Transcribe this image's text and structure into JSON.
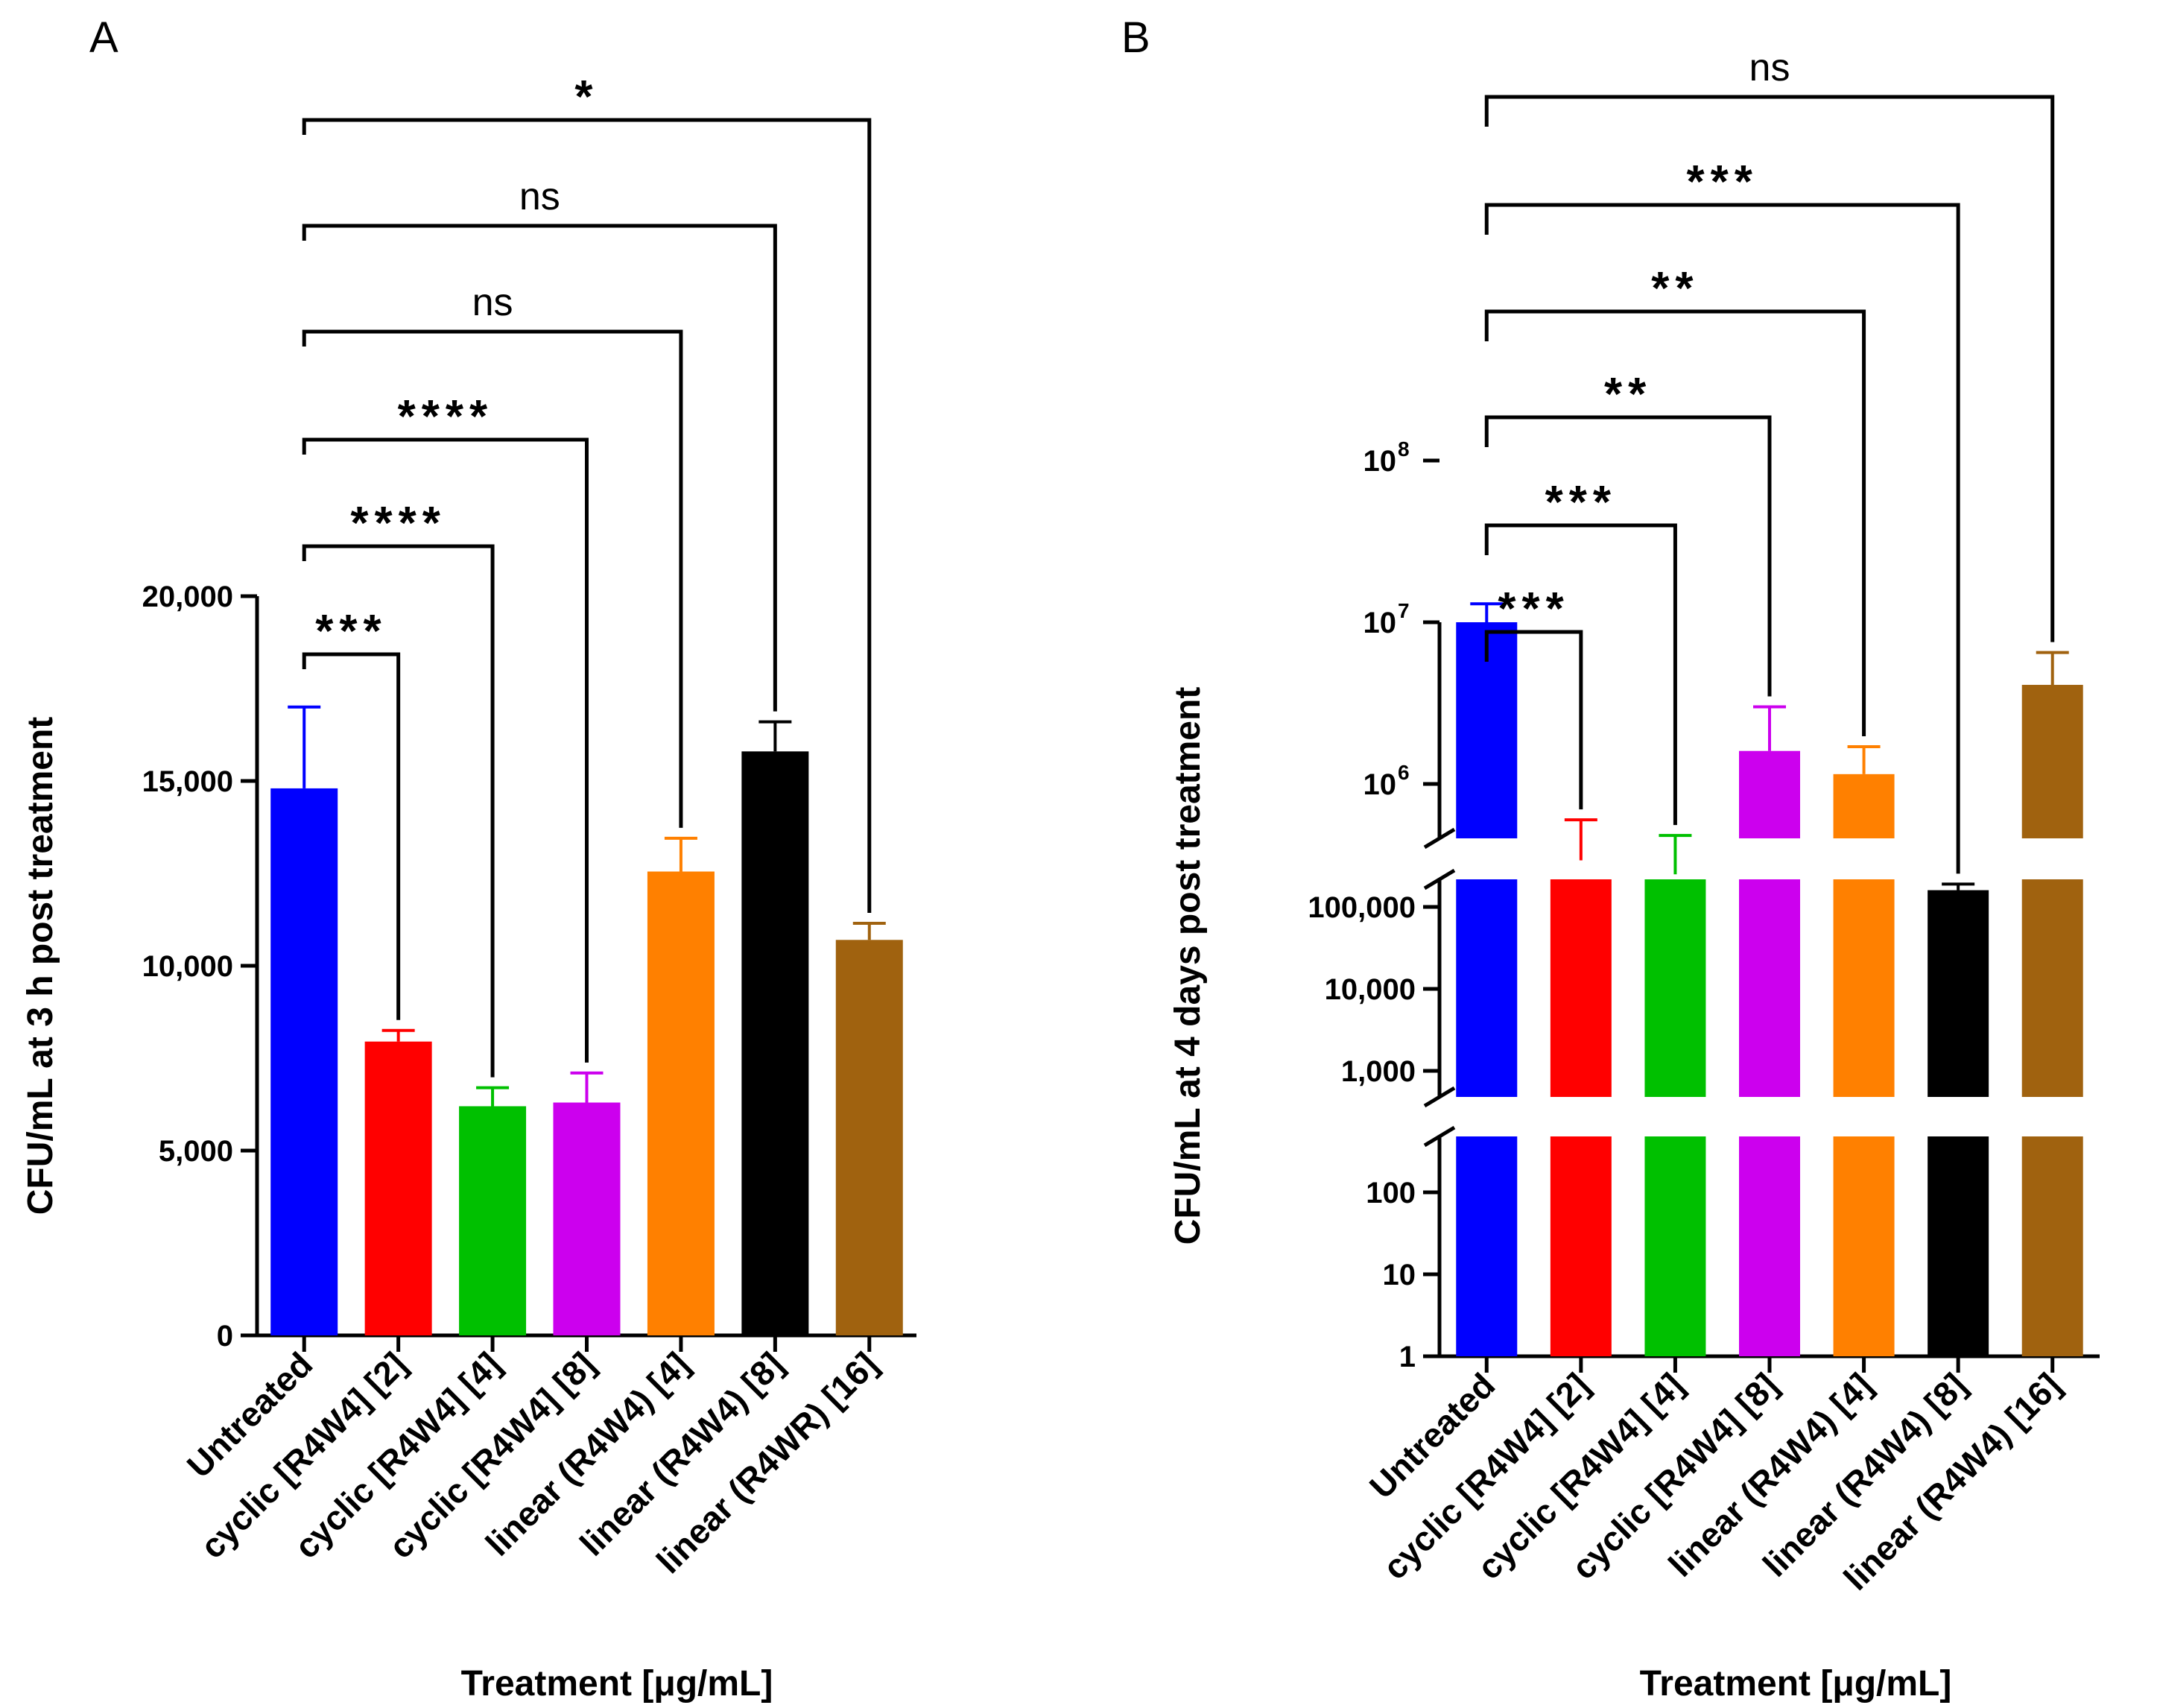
{
  "chart_data": [
    {
      "panel": "A",
      "type": "bar",
      "ylabel": "CFU/mL at 3 h post treatment",
      "xlabel": "Treatment [μg/mL]",
      "ylim": [
        0,
        20000
      ],
      "yticks": [
        0,
        5000,
        10000,
        15000,
        20000
      ],
      "ytick_labels": [
        "0",
        "5,000",
        "10,000",
        "15,000",
        "20,000"
      ],
      "categories": [
        "Untreated",
        "cyclic [R4W4] [2]",
        "cyclic [R4W4] [4]",
        "cyclic [R4W4] [8]",
        "linear (R4W4) [4]",
        "linear (R4W4) [8]",
        "linear (R4WR) [16]"
      ],
      "values": [
        14800,
        7950,
        6200,
        6300,
        12550,
        15800,
        10700
      ],
      "errors": [
        2200,
        300,
        500,
        800,
        900,
        800,
        450
      ],
      "colors": [
        "#0000ff",
        "#ff0000",
        "#00c000",
        "#cc00ee",
        "#ff8000",
        "#000000",
        "#a0620f"
      ],
      "comparisons": [
        {
          "to": 1,
          "label": "***"
        },
        {
          "to": 2,
          "label": "****"
        },
        {
          "to": 3,
          "label": "****"
        },
        {
          "to": 4,
          "label": "ns"
        },
        {
          "to": 5,
          "label": "ns"
        },
        {
          "to": 6,
          "label": "*"
        }
      ]
    },
    {
      "panel": "B",
      "type": "bar",
      "scale": "log-broken",
      "ylabel": "CFU/mL at 4 days post treatment",
      "xlabel": "Treatment [μg/mL]",
      "ylim": [
        1,
        100000000
      ],
      "yticks_lower": [
        "1",
        "10",
        "100"
      ],
      "yticks_middle": [
        "1,000",
        "10,000",
        "100,000"
      ],
      "yticks_upper": [
        "10",
        "10",
        "10"
      ],
      "yticks_upper_exp": [
        "6",
        "7",
        "8"
      ],
      "categories": [
        "Untreated",
        "cyclic [R4W4] [2]",
        "cyclic [R4W4] [4]",
        "cyclic [R4W4] [8]",
        "linear (R4W4) [4]",
        "linear (R4W4) [8]",
        "linear (R4W4) [16]"
      ],
      "values": [
        10000000,
        370000,
        250000,
        1600000,
        1150000,
        160000,
        4100000
      ],
      "error_tops": [
        13000000,
        600000,
        480000,
        3000000,
        1700000,
        190000,
        6500000
      ],
      "colors": [
        "#0000ff",
        "#ff0000",
        "#00c000",
        "#cc00ee",
        "#ff8000",
        "#000000",
        "#a0620f"
      ],
      "comparisons": [
        {
          "to": 1,
          "label": "***"
        },
        {
          "to": 2,
          "label": "***"
        },
        {
          "to": 3,
          "label": "**"
        },
        {
          "to": 4,
          "label": "**"
        },
        {
          "to": 5,
          "label": "***"
        },
        {
          "to": 6,
          "label": "ns"
        }
      ]
    }
  ]
}
